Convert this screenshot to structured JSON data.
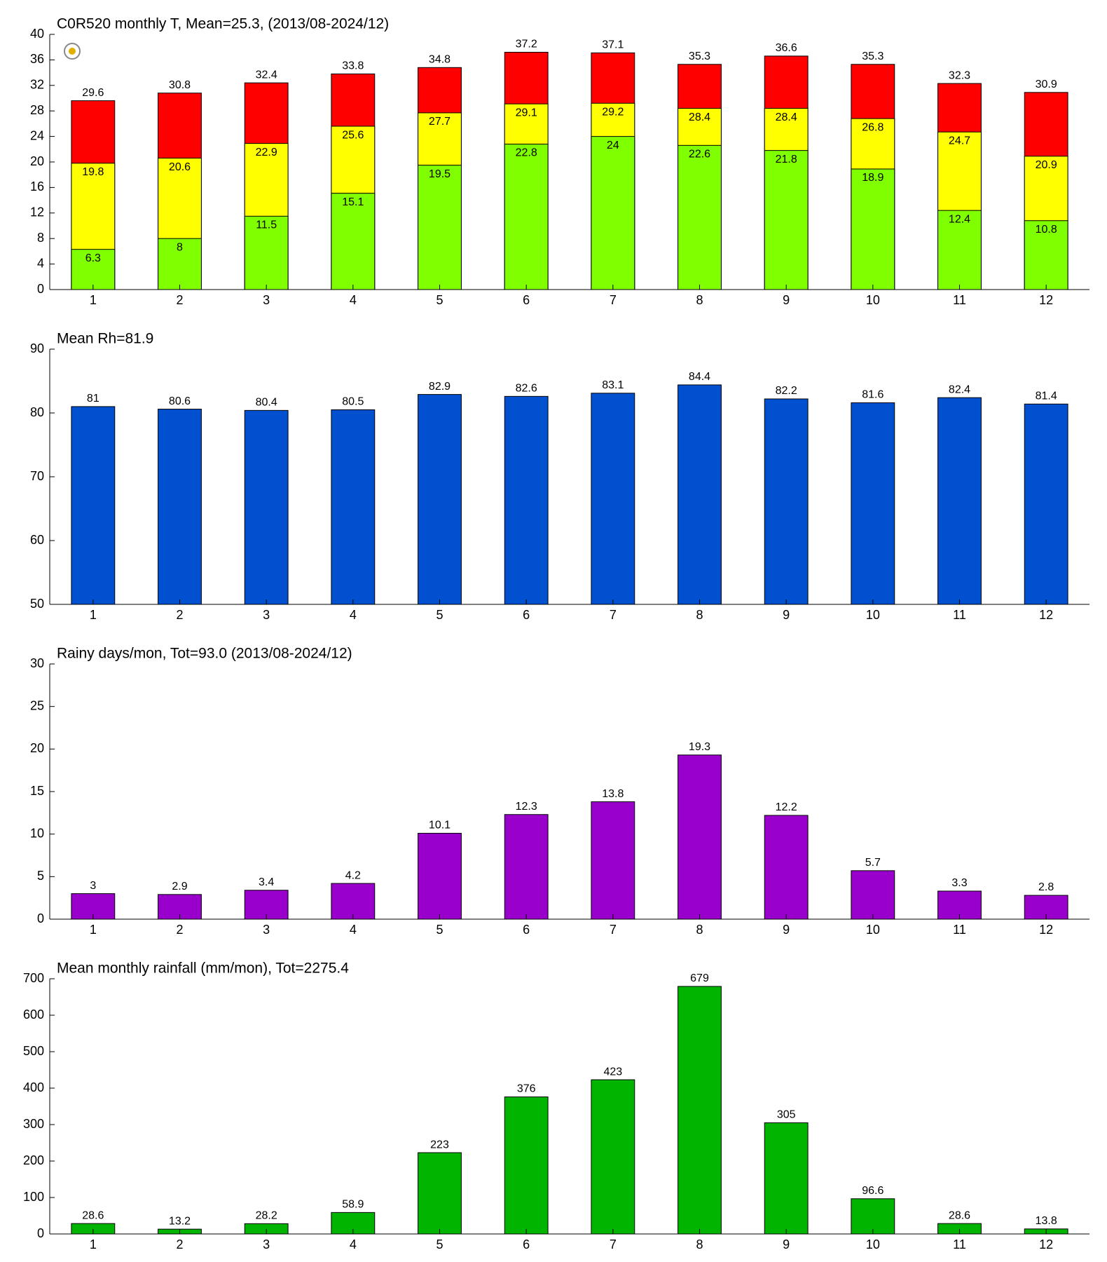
{
  "chart_data": [
    {
      "type": "bar",
      "title": "C0R520 monthly T, Mean=25.3, (2013/08-2024/12)",
      "categories": [
        "1",
        "2",
        "3",
        "4",
        "5",
        "6",
        "7",
        "8",
        "9",
        "10",
        "11",
        "12"
      ],
      "series": [
        {
          "color": "#ff0000",
          "values": [
            29.6,
            30.8,
            32.4,
            33.8,
            34.8,
            37.2,
            37.1,
            35.3,
            36.6,
            35.3,
            32.3,
            30.9
          ]
        },
        {
          "color": "#ffff00",
          "values": [
            19.8,
            20.6,
            22.9,
            25.6,
            27.7,
            29.1,
            29.2,
            28.4,
            28.4,
            26.8,
            24.7,
            20.9
          ]
        },
        {
          "color": "#80ff00",
          "values": [
            6.3,
            8,
            11.5,
            15.1,
            19.5,
            22.8,
            24,
            22.6,
            21.8,
            18.9,
            12.4,
            10.8
          ]
        }
      ],
      "ylim": [
        0,
        40
      ],
      "yticks": [
        0,
        4,
        8,
        12,
        16,
        20,
        24,
        28,
        32,
        36,
        40
      ]
    },
    {
      "type": "bar",
      "title": "Mean Rh=81.9",
      "categories": [
        "1",
        "2",
        "3",
        "4",
        "5",
        "6",
        "7",
        "8",
        "9",
        "10",
        "11",
        "12"
      ],
      "values": [
        81,
        80.6,
        80.4,
        80.5,
        82.9,
        82.6,
        83.1,
        84.4,
        82.2,
        81.6,
        82.4,
        81.4
      ],
      "color": "#0050d0",
      "ylim": [
        50,
        90
      ],
      "yticks": [
        50,
        60,
        70,
        80,
        90
      ]
    },
    {
      "type": "bar",
      "title": "Rainy days/mon, Tot=93.0 (2013/08-2024/12)",
      "categories": [
        "1",
        "2",
        "3",
        "4",
        "5",
        "6",
        "7",
        "8",
        "9",
        "10",
        "11",
        "12"
      ],
      "values": [
        3,
        2.9,
        3.4,
        4.2,
        10.1,
        12.3,
        13.8,
        19.3,
        12.2,
        5.7,
        3.3,
        2.8
      ],
      "color": "#9900cc",
      "ylim": [
        0,
        30
      ],
      "yticks": [
        0,
        5,
        10,
        15,
        20,
        25,
        30
      ]
    },
    {
      "type": "bar",
      "title": "Mean monthly rainfall (mm/mon), Tot=2275.4",
      "categories": [
        "1",
        "2",
        "3",
        "4",
        "5",
        "6",
        "7",
        "8",
        "9",
        "10",
        "11",
        "12"
      ],
      "values": [
        28.6,
        13.2,
        28.2,
        58.9,
        223,
        376,
        423,
        679,
        305,
        96.6,
        28.6,
        13.8
      ],
      "color": "#00b400",
      "ylim": [
        0,
        700
      ],
      "yticks": [
        0,
        100,
        200,
        300,
        400,
        500,
        600,
        700
      ]
    }
  ]
}
